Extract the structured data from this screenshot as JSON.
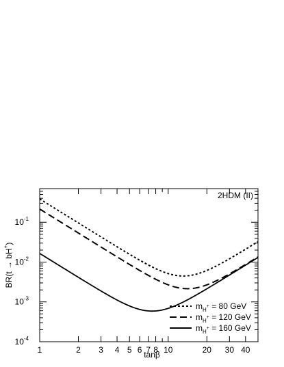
{
  "chart_data": {
    "type": "line",
    "annotation": "2HDM (II)",
    "xlabel": "tanβ",
    "ylabel": {
      "main": "BR(t → bH",
      "sup": "+",
      "tail": ")"
    },
    "x_scale": "log",
    "y_scale": "log",
    "xlim": [
      1,
      50
    ],
    "ylim": [
      0.0001,
      0.7
    ],
    "x_ticks": [
      {
        "value": 1,
        "label": "1"
      },
      {
        "value": 2,
        "label": "2"
      },
      {
        "value": 3,
        "label": "3"
      },
      {
        "value": 4,
        "label": "4"
      },
      {
        "value": 5,
        "label": "5"
      },
      {
        "value": 6,
        "label": "6"
      },
      {
        "value": 7,
        "label": "7"
      },
      {
        "value": 8,
        "label": "8"
      },
      {
        "value": 10,
        "label": "10"
      },
      {
        "value": 20,
        "label": "20"
      },
      {
        "value": 30,
        "label": "30"
      },
      {
        "value": 40,
        "label": "40"
      }
    ],
    "y_ticks": [
      {
        "value": 0.0001,
        "base": "10",
        "exp": "-4"
      },
      {
        "value": 0.001,
        "base": "10",
        "exp": "-3"
      },
      {
        "value": 0.01,
        "base": "10",
        "exp": "-2"
      },
      {
        "value": 0.1,
        "base": "10",
        "exp": "-1"
      }
    ],
    "series": [
      {
        "prefix": "m",
        "sub": "H",
        "sup": "+",
        "label": " =   80 GeV",
        "style": "dotted",
        "a": 0.385,
        "b": 1.3e-05
      },
      {
        "prefix": "m",
        "sub": "H",
        "sup": "+",
        "label": " = 120 GeV",
        "style": "dashed",
        "a": 0.215,
        "b": 5.35e-06
      },
      {
        "prefix": "m",
        "sub": "H",
        "sup": "+",
        "label": " = 160 GeV",
        "style": "solid",
        "a": 0.0165,
        "b": 5.23e-06
      }
    ],
    "legend_position": "bottom-right",
    "grid": false,
    "line_color": "#000000"
  }
}
